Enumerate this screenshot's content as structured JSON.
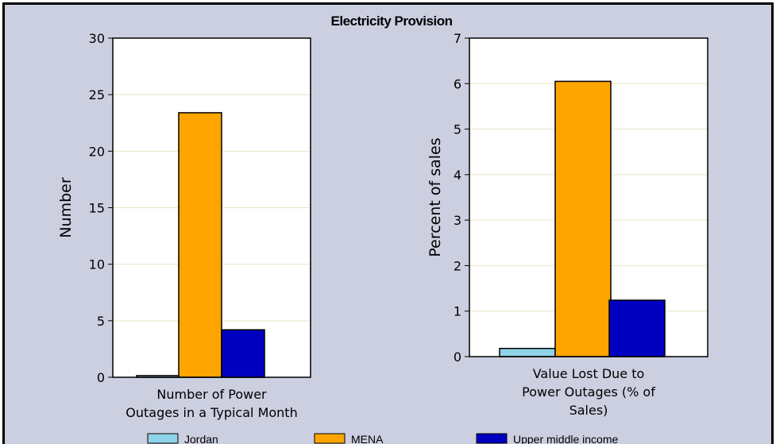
{
  "chart_data": {
    "title": "Electricity Provision",
    "panels": [
      {
        "type": "bar",
        "categories": [
          "Number of Power Outages in a Typical Month"
        ],
        "category_lines": [
          "Number of Power",
          "Outages in a Typical Month"
        ],
        "ylabel": "Number",
        "ylim": [
          0,
          30
        ],
        "yticks": [
          0,
          5,
          10,
          15,
          20,
          25,
          30
        ],
        "series": [
          {
            "name": "Jordan",
            "values": [
              0.15
            ],
            "color": "#8fd3e8"
          },
          {
            "name": "MENA",
            "values": [
              23.4
            ],
            "color": "#ffa500"
          },
          {
            "name": "Upper middle income",
            "values": [
              4.2
            ],
            "color": "#0000c0"
          }
        ]
      },
      {
        "type": "bar",
        "categories": [
          "Value Lost Due to Power Outages (% of Sales)"
        ],
        "category_lines": [
          "Value Lost Due to",
          "Power Outages (% of",
          "Sales)"
        ],
        "ylabel": "Percent of sales",
        "ylim": [
          0,
          7
        ],
        "yticks": [
          0,
          1,
          2,
          3,
          4,
          5,
          6,
          7
        ],
        "series": [
          {
            "name": "Jordan",
            "values": [
              0.18
            ],
            "color": "#8fd3e8"
          },
          {
            "name": "MENA",
            "values": [
              6.05
            ],
            "color": "#ffa500"
          },
          {
            "name": "Upper middle income",
            "values": [
              1.24
            ],
            "color": "#0000c0"
          }
        ]
      }
    ],
    "legend": {
      "position": "bottom",
      "entries": [
        {
          "name": "Jordan",
          "color": "#8fd3e8"
        },
        {
          "name": "MENA",
          "color": "#ffa500"
        },
        {
          "name": "Upper middle income",
          "color": "#0000c0"
        }
      ]
    },
    "grid": true,
    "colors": {
      "background": "#cccfe0",
      "plot_background": "#ffffff",
      "gridline": "#e6e6c8"
    }
  }
}
